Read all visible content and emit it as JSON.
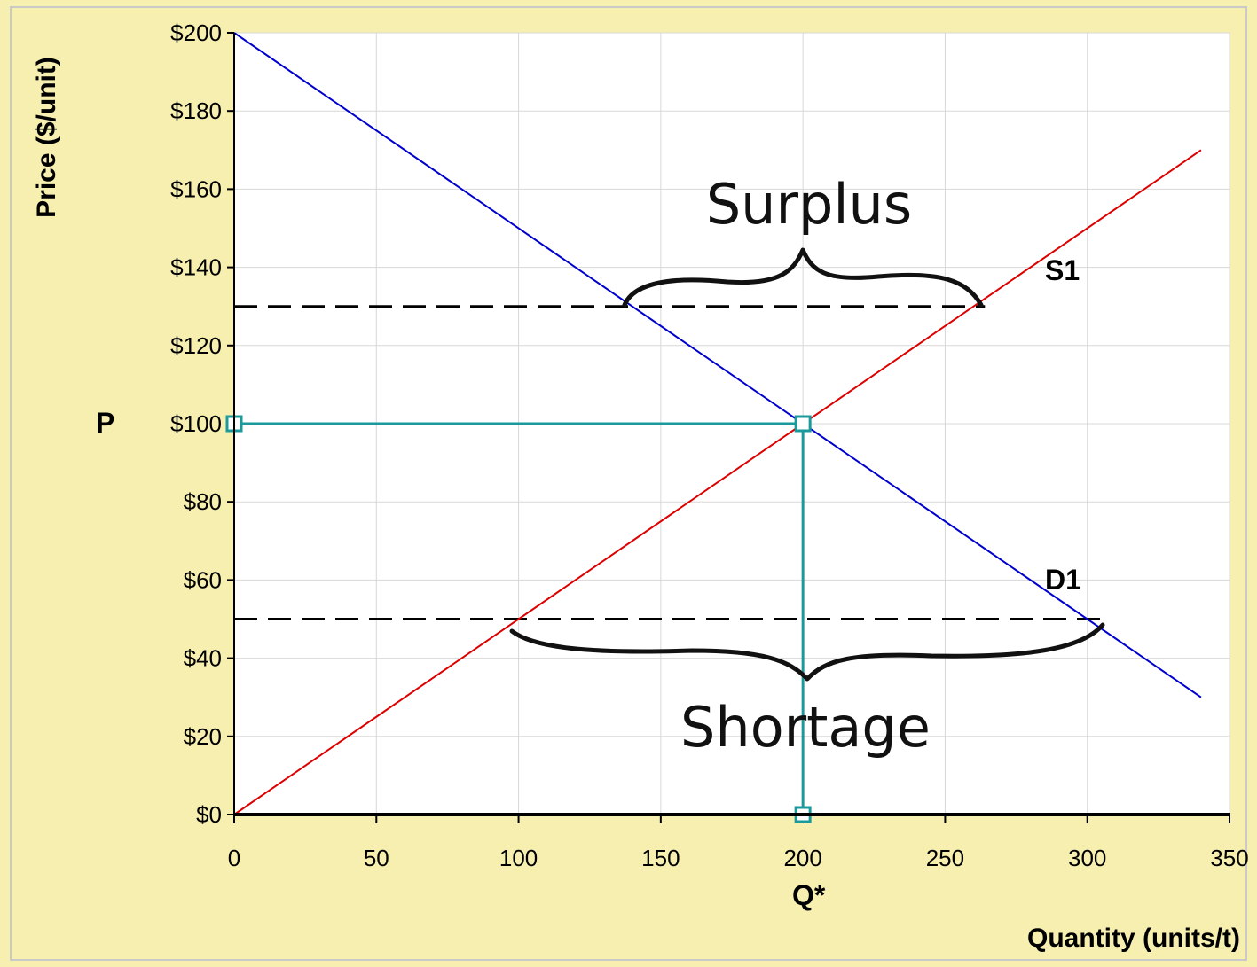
{
  "chart_data": {
    "type": "line",
    "title": "",
    "xlabel": "Quantity (units/t)",
    "ylabel": "Price ($/unit)",
    "xlim": [
      0,
      350
    ],
    "ylim": [
      0,
      200
    ],
    "grid": true,
    "x_ticks": [
      "0",
      "50",
      "100",
      "150",
      "200",
      "250",
      "300",
      "350"
    ],
    "y_ticks": [
      "$0",
      "$20",
      "$40",
      "$60",
      "$80",
      "$100",
      "$120",
      "$140",
      "$160",
      "$180",
      "$200"
    ],
    "x_tick_values": [
      0,
      50,
      100,
      150,
      200,
      250,
      300,
      350
    ],
    "y_tick_values": [
      0,
      20,
      40,
      60,
      80,
      100,
      120,
      140,
      160,
      180,
      200
    ],
    "series": [
      {
        "name": "S1",
        "color": "#dd0000",
        "points": [
          [
            0,
            0
          ],
          [
            340,
            170
          ]
        ]
      },
      {
        "name": "D1",
        "color": "#0000cc",
        "points": [
          [
            0,
            200
          ],
          [
            340,
            30
          ]
        ]
      }
    ],
    "equilibrium": {
      "q": 200,
      "p": 100,
      "color": "#1a9a9a",
      "price_marker": "P",
      "quantity_marker": "Q*"
    },
    "price_ceiling": 50,
    "price_floor": 130,
    "annotations": {
      "surplus": "Surplus",
      "shortage": "Shortage"
    }
  },
  "colors": {
    "background": "#f6efb0",
    "plot_background": "#ffffff",
    "grid": "#d8d8d8",
    "dashed": "#000000"
  }
}
